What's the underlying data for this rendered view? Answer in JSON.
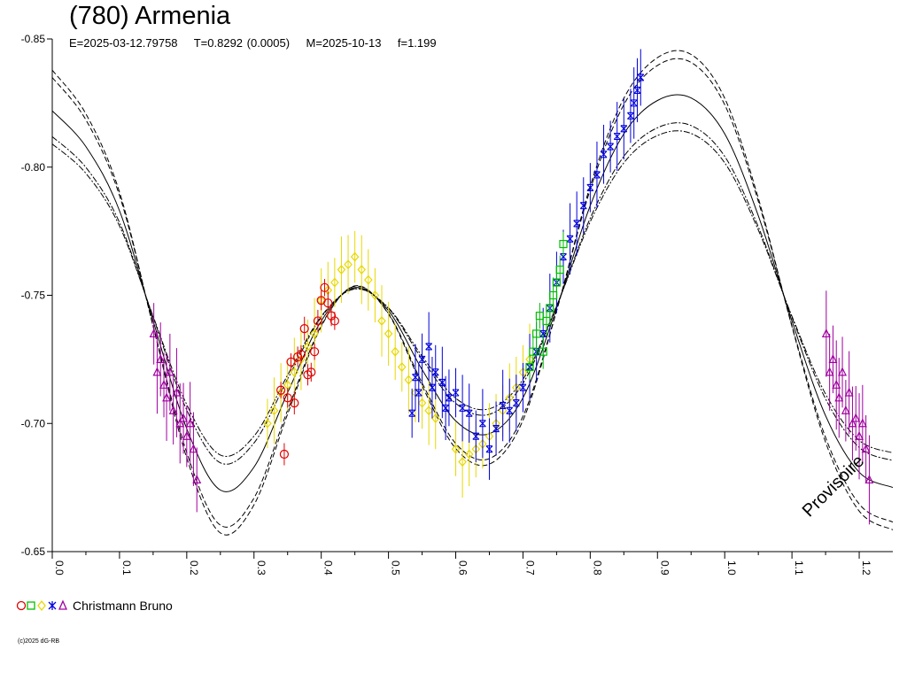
{
  "chart_data": {
    "type": "scatter",
    "title": "(780) Armenia",
    "subtitle": "E=2025-03-12.79758    T=0.8292 (0.0005)    M=2025-10-13    f=1.199",
    "xlabel": "",
    "ylabel": "",
    "xlim": [
      0.0,
      1.25
    ],
    "ylim": [
      -0.85,
      -0.65
    ],
    "y_inverted": true,
    "y_ticks": [
      "-0.85",
      "-0.80",
      "-0.75",
      "-0.70",
      "-0.65"
    ],
    "x_ticks": [
      "0.0",
      "0.1",
      "0.2",
      "0.3",
      "0.4",
      "0.5",
      "0.6",
      "0.7",
      "0.8",
      "0.9",
      "1.0",
      "1.1",
      "1.2"
    ],
    "grid": false,
    "legend_position": "bottom-left",
    "legend": {
      "observer": "Christmann Bruno",
      "symbols": [
        {
          "shape": "circle",
          "color": "#e00000"
        },
        {
          "shape": "square",
          "color": "#00c000"
        },
        {
          "shape": "diamond",
          "color": "#e8d800"
        },
        {
          "shape": "star",
          "color": "#0000dd"
        },
        {
          "shape": "triangle",
          "color": "#a000a0"
        }
      ]
    },
    "fit": {
      "x": [
        0.0,
        0.05,
        0.1,
        0.15,
        0.2,
        0.25,
        0.3,
        0.35,
        0.4,
        0.45,
        0.5,
        0.55,
        0.6,
        0.65,
        0.7,
        0.75,
        0.8,
        0.85,
        0.9,
        0.95,
        1.0,
        1.05,
        1.1,
        1.15,
        1.2,
        1.25
      ],
      "y": [
        -0.822,
        -0.808,
        -0.783,
        -0.74,
        -0.698,
        -0.674,
        -0.683,
        -0.712,
        -0.74,
        -0.753,
        -0.744,
        -0.721,
        -0.701,
        -0.696,
        -0.71,
        -0.745,
        -0.785,
        -0.813,
        -0.826,
        -0.827,
        -0.813,
        -0.781,
        -0.74,
        -0.703,
        -0.681,
        -0.675
      ],
      "upper_offset": 0.017,
      "lower_offset": -0.014
    },
    "series": [
      {
        "marker": "triangle",
        "color": "#a000a0",
        "x": [
          0.151,
          0.156,
          0.161,
          0.166,
          0.17,
          0.175,
          0.18,
          0.185,
          0.19,
          0.195,
          0.2,
          0.205,
          0.21,
          0.215,
          1.151,
          1.156,
          1.161,
          1.166,
          1.17,
          1.175,
          1.18,
          1.185,
          1.19,
          1.195,
          1.2,
          1.205,
          1.21,
          1.215
        ],
        "y": [
          -0.735,
          -0.72,
          -0.725,
          -0.715,
          -0.71,
          -0.72,
          -0.705,
          -0.712,
          -0.7,
          -0.702,
          -0.695,
          -0.7,
          -0.69,
          -0.678,
          -0.735,
          -0.72,
          -0.725,
          -0.715,
          -0.71,
          -0.72,
          -0.705,
          -0.712,
          -0.7,
          -0.702,
          -0.695,
          -0.7,
          -0.69,
          -0.678
        ],
        "err": 0.015
      },
      {
        "marker": "circle",
        "color": "#e00000",
        "x": [
          0.34,
          0.345,
          0.35,
          0.355,
          0.36,
          0.365,
          0.37,
          0.375,
          0.38,
          0.385,
          0.39,
          0.395,
          0.4,
          0.405,
          0.41,
          0.415,
          0.42
        ],
        "y": [
          -0.713,
          -0.688,
          -0.71,
          -0.724,
          -0.708,
          -0.726,
          -0.727,
          -0.737,
          -0.719,
          -0.72,
          -0.728,
          -0.74,
          -0.748,
          -0.753,
          -0.747,
          -0.742,
          -0.74
        ],
        "err": 0.004
      },
      {
        "marker": "diamond",
        "color": "#e8d800",
        "x": [
          0.32,
          0.33,
          0.34,
          0.35,
          0.36,
          0.37,
          0.38,
          0.39,
          0.4,
          0.41,
          0.42,
          0.43,
          0.44,
          0.45,
          0.46,
          0.47,
          0.48,
          0.49,
          0.5,
          0.51,
          0.52,
          0.53,
          0.54,
          0.55,
          0.56,
          0.57,
          0.6,
          0.61,
          0.62,
          0.63,
          0.64,
          0.65,
          0.66,
          0.67,
          0.68,
          0.69,
          0.7,
          0.71
        ],
        "y": [
          -0.7,
          -0.705,
          -0.712,
          -0.715,
          -0.72,
          -0.725,
          -0.73,
          -0.735,
          -0.748,
          -0.752,
          -0.755,
          -0.76,
          -0.762,
          -0.765,
          -0.76,
          -0.756,
          -0.75,
          -0.74,
          -0.735,
          -0.728,
          -0.722,
          -0.717,
          -0.712,
          -0.708,
          -0.705,
          -0.702,
          -0.69,
          -0.685,
          -0.688,
          -0.69,
          -0.692,
          -0.695,
          -0.7,
          -0.705,
          -0.71,
          -0.714,
          -0.72,
          -0.725
        ],
        "err": 0.012
      },
      {
        "marker": "square",
        "color": "#00c000",
        "x": [
          0.71,
          0.715,
          0.72,
          0.725,
          0.73,
          0.735,
          0.74,
          0.745,
          0.75,
          0.755,
          0.76
        ],
        "y": [
          -0.722,
          -0.728,
          -0.735,
          -0.742,
          -0.728,
          -0.74,
          -0.745,
          -0.75,
          -0.755,
          -0.76,
          -0.77
        ],
        "err": 0.006
      },
      {
        "marker": "star",
        "color": "#0000dd",
        "x": [
          0.535,
          0.54,
          0.545,
          0.55,
          0.56,
          0.565,
          0.57,
          0.58,
          0.585,
          0.59,
          0.6,
          0.61,
          0.62,
          0.63,
          0.64,
          0.65,
          0.66,
          0.67,
          0.68,
          0.69,
          0.7,
          0.71,
          0.72,
          0.73,
          0.74,
          0.75,
          0.76,
          0.77,
          0.78,
          0.79,
          0.8,
          0.81,
          0.82,
          0.83,
          0.84,
          0.85,
          0.86,
          0.865,
          0.87,
          0.875
        ],
        "y": [
          -0.704,
          -0.718,
          -0.712,
          -0.725,
          -0.73,
          -0.714,
          -0.72,
          -0.716,
          -0.706,
          -0.71,
          -0.712,
          -0.706,
          -0.704,
          -0.695,
          -0.7,
          -0.69,
          -0.698,
          -0.707,
          -0.705,
          -0.708,
          -0.714,
          -0.722,
          -0.728,
          -0.735,
          -0.745,
          -0.755,
          -0.765,
          -0.772,
          -0.778,
          -0.785,
          -0.792,
          -0.797,
          -0.805,
          -0.808,
          -0.812,
          -0.815,
          -0.82,
          -0.825,
          -0.83,
          -0.835
        ],
        "err": 0.012
      }
    ],
    "annotation": "Provisoire"
  },
  "footer": {
    "copyright": "(c)2025 dG-RB"
  }
}
